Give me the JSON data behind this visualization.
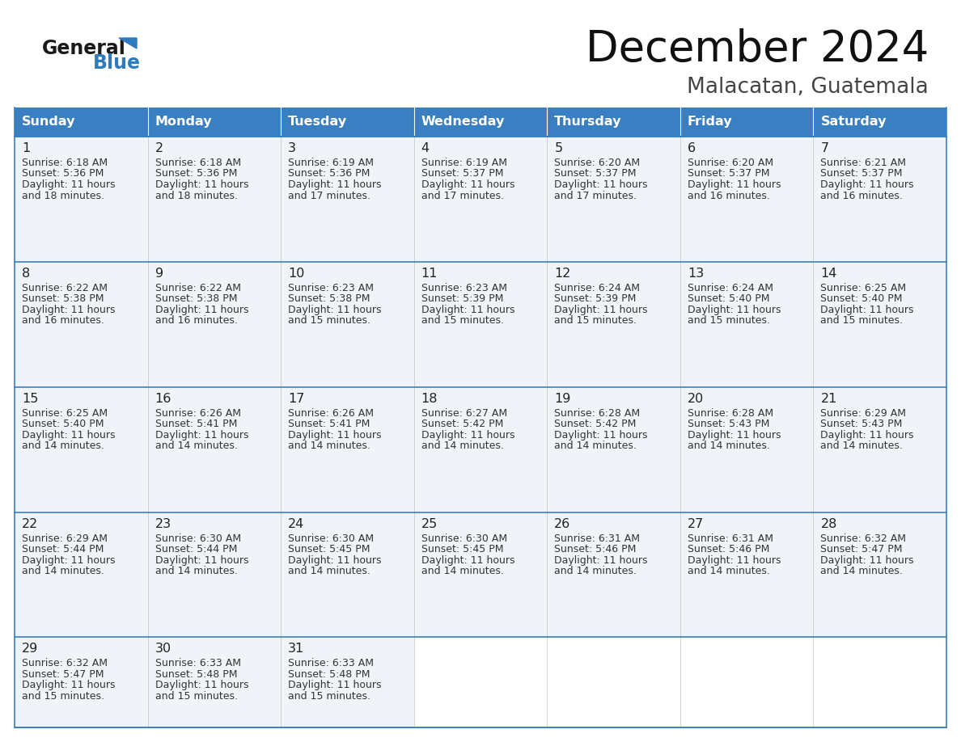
{
  "title": "December 2024",
  "subtitle": "Malacatan, Guatemala",
  "days_of_week": [
    "Sunday",
    "Monday",
    "Tuesday",
    "Wednesday",
    "Thursday",
    "Friday",
    "Saturday"
  ],
  "header_bg_color": "#3a7fc1",
  "header_text_color": "#ffffff",
  "cell_bg_color": "#f0f4f8",
  "cell_bg_empty": "#ffffff",
  "cell_border_color": "#3a7fc1",
  "row_border_color": "#3a7fc1",
  "day_number_color": "#222222",
  "cell_text_color": "#333333",
  "title_color": "#111111",
  "subtitle_color": "#444444",
  "logo_general_color": "#1a1a1a",
  "logo_blue_color": "#2e7bbf",
  "calendar_data": [
    [
      {
        "day": 1,
        "sunrise": "6:18 AM",
        "sunset": "5:36 PM",
        "daylight_suffix": "18 minutes."
      },
      {
        "day": 2,
        "sunrise": "6:18 AM",
        "sunset": "5:36 PM",
        "daylight_suffix": "18 minutes."
      },
      {
        "day": 3,
        "sunrise": "6:19 AM",
        "sunset": "5:36 PM",
        "daylight_suffix": "17 minutes."
      },
      {
        "day": 4,
        "sunrise": "6:19 AM",
        "sunset": "5:37 PM",
        "daylight_suffix": "17 minutes."
      },
      {
        "day": 5,
        "sunrise": "6:20 AM",
        "sunset": "5:37 PM",
        "daylight_suffix": "17 minutes."
      },
      {
        "day": 6,
        "sunrise": "6:20 AM",
        "sunset": "5:37 PM",
        "daylight_suffix": "16 minutes."
      },
      {
        "day": 7,
        "sunrise": "6:21 AM",
        "sunset": "5:37 PM",
        "daylight_suffix": "16 minutes."
      }
    ],
    [
      {
        "day": 8,
        "sunrise": "6:22 AM",
        "sunset": "5:38 PM",
        "daylight_suffix": "16 minutes."
      },
      {
        "day": 9,
        "sunrise": "6:22 AM",
        "sunset": "5:38 PM",
        "daylight_suffix": "16 minutes."
      },
      {
        "day": 10,
        "sunrise": "6:23 AM",
        "sunset": "5:38 PM",
        "daylight_suffix": "15 minutes."
      },
      {
        "day": 11,
        "sunrise": "6:23 AM",
        "sunset": "5:39 PM",
        "daylight_suffix": "15 minutes."
      },
      {
        "day": 12,
        "sunrise": "6:24 AM",
        "sunset": "5:39 PM",
        "daylight_suffix": "15 minutes."
      },
      {
        "day": 13,
        "sunrise": "6:24 AM",
        "sunset": "5:40 PM",
        "daylight_suffix": "15 minutes."
      },
      {
        "day": 14,
        "sunrise": "6:25 AM",
        "sunset": "5:40 PM",
        "daylight_suffix": "15 minutes."
      }
    ],
    [
      {
        "day": 15,
        "sunrise": "6:25 AM",
        "sunset": "5:40 PM",
        "daylight_suffix": "14 minutes."
      },
      {
        "day": 16,
        "sunrise": "6:26 AM",
        "sunset": "5:41 PM",
        "daylight_suffix": "14 minutes."
      },
      {
        "day": 17,
        "sunrise": "6:26 AM",
        "sunset": "5:41 PM",
        "daylight_suffix": "14 minutes."
      },
      {
        "day": 18,
        "sunrise": "6:27 AM",
        "sunset": "5:42 PM",
        "daylight_suffix": "14 minutes."
      },
      {
        "day": 19,
        "sunrise": "6:28 AM",
        "sunset": "5:42 PM",
        "daylight_suffix": "14 minutes."
      },
      {
        "day": 20,
        "sunrise": "6:28 AM",
        "sunset": "5:43 PM",
        "daylight_suffix": "14 minutes."
      },
      {
        "day": 21,
        "sunrise": "6:29 AM",
        "sunset": "5:43 PM",
        "daylight_suffix": "14 minutes."
      }
    ],
    [
      {
        "day": 22,
        "sunrise": "6:29 AM",
        "sunset": "5:44 PM",
        "daylight_suffix": "14 minutes."
      },
      {
        "day": 23,
        "sunrise": "6:30 AM",
        "sunset": "5:44 PM",
        "daylight_suffix": "14 minutes."
      },
      {
        "day": 24,
        "sunrise": "6:30 AM",
        "sunset": "5:45 PM",
        "daylight_suffix": "14 minutes."
      },
      {
        "day": 25,
        "sunrise": "6:30 AM",
        "sunset": "5:45 PM",
        "daylight_suffix": "14 minutes."
      },
      {
        "day": 26,
        "sunrise": "6:31 AM",
        "sunset": "5:46 PM",
        "daylight_suffix": "14 minutes."
      },
      {
        "day": 27,
        "sunrise": "6:31 AM",
        "sunset": "5:46 PM",
        "daylight_suffix": "14 minutes."
      },
      {
        "day": 28,
        "sunrise": "6:32 AM",
        "sunset": "5:47 PM",
        "daylight_suffix": "14 minutes."
      }
    ],
    [
      {
        "day": 29,
        "sunrise": "6:32 AM",
        "sunset": "5:47 PM",
        "daylight_suffix": "15 minutes."
      },
      {
        "day": 30,
        "sunrise": "6:33 AM",
        "sunset": "5:48 PM",
        "daylight_suffix": "15 minutes."
      },
      {
        "day": 31,
        "sunrise": "6:33 AM",
        "sunset": "5:48 PM",
        "daylight_suffix": "15 minutes."
      },
      null,
      null,
      null,
      null
    ]
  ]
}
